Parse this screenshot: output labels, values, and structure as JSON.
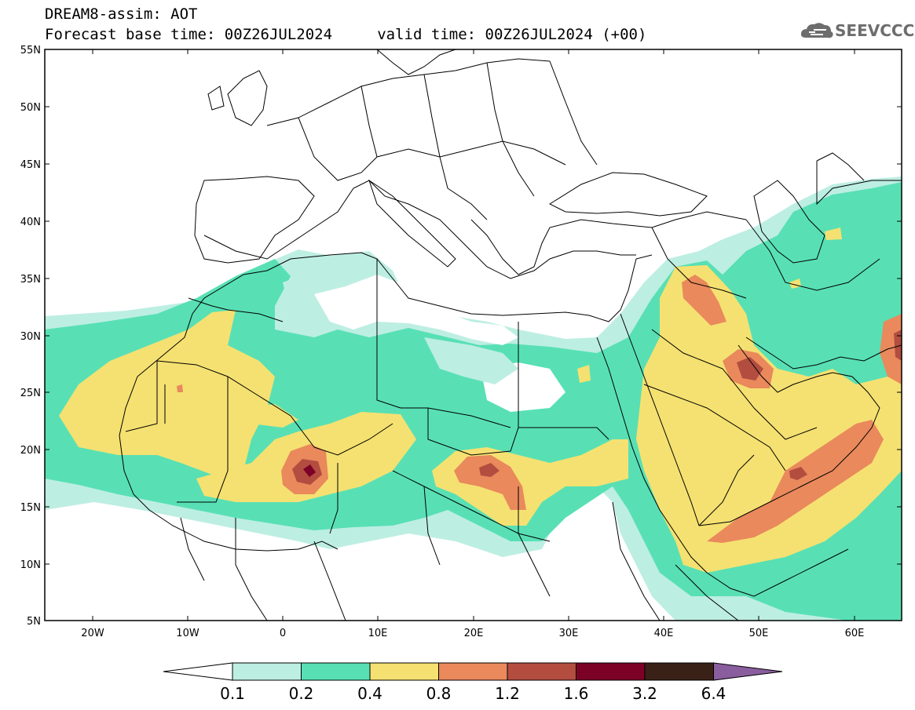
{
  "header": {
    "title_line1": "DREAM8-assim: AOT",
    "title_line2": "Forecast base time: 00Z26JUL2024     valid time: 00Z26JUL2024 (+00)"
  },
  "logo": {
    "text": "SEEVCCC",
    "icon": "cloud-icon"
  },
  "map": {
    "lon_range": [
      -25,
      65
    ],
    "lat_range": [
      5,
      55
    ],
    "lat_ticks": [
      "55N",
      "50N",
      "45N",
      "40N",
      "35N",
      "30N",
      "25N",
      "20N",
      "15N",
      "10N",
      "5N"
    ],
    "lon_ticks": [
      "20W",
      "10W",
      "0",
      "10E",
      "20E",
      "30E",
      "40E",
      "50E",
      "60E"
    ]
  },
  "colorbar": {
    "levels": [
      "0.1",
      "0.2",
      "0.4",
      "0.8",
      "1.2",
      "1.6",
      "3.2",
      "6.4"
    ],
    "colors": [
      "#ffffff",
      "#bdeee2",
      "#58e0b4",
      "#f5e171",
      "#e9895c",
      "#b24d40",
      "#7c0127",
      "#3a2117",
      "#8a5e9e"
    ]
  }
}
